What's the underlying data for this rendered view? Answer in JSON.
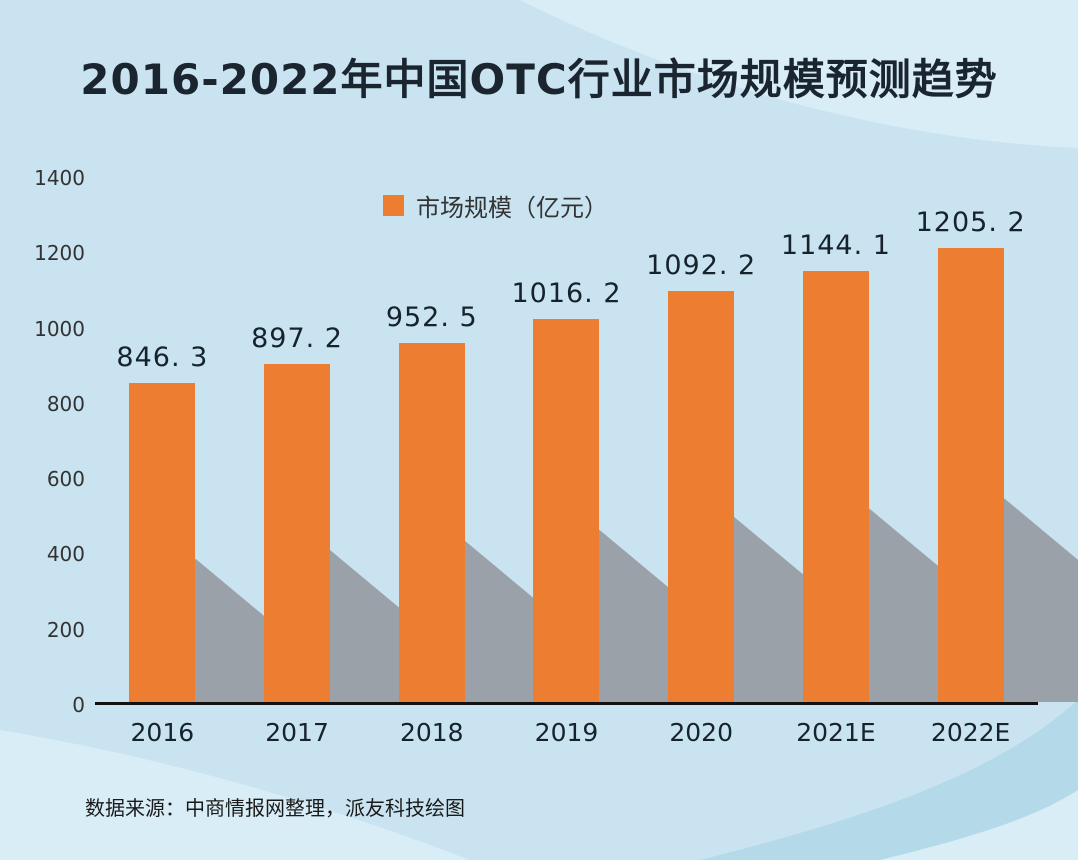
{
  "title": "2016-2022年中国OTC行业市场规模预测趋势",
  "source_note": "数据来源：中商情报网整理，派友科技绘图",
  "legend": {
    "label": "市场规模（亿元）"
  },
  "colors": {
    "bar": "#ed7d31",
    "background": "#c9e4f0",
    "background_light": "#d9edf7",
    "background_teal": "#b4d9e8",
    "shadow": "#9aa1a8",
    "title_text": "#1a2530",
    "axis_text": "#333333"
  },
  "chart_data": {
    "type": "bar",
    "title": "2016-2022年中国OTC行业市场规模预测趋势",
    "categories": [
      "2016",
      "2017",
      "2018",
      "2019",
      "2020",
      "2021E",
      "2022E"
    ],
    "values": [
      846.3,
      897.2,
      952.5,
      1016.2,
      1092.2,
      1144.1,
      1205.2
    ],
    "value_labels": [
      "846. 3",
      "897. 2",
      "952. 5",
      "1016. 2",
      "1092. 2",
      "1144. 1",
      "1205. 2"
    ],
    "series_name": "市场规模（亿元）",
    "xlabel": "",
    "ylabel": "",
    "ylim": [
      0,
      1400
    ],
    "yticks": [
      0,
      200,
      400,
      600,
      800,
      1000,
      1200,
      1400
    ],
    "grid": false,
    "legend_position": "top-center"
  }
}
